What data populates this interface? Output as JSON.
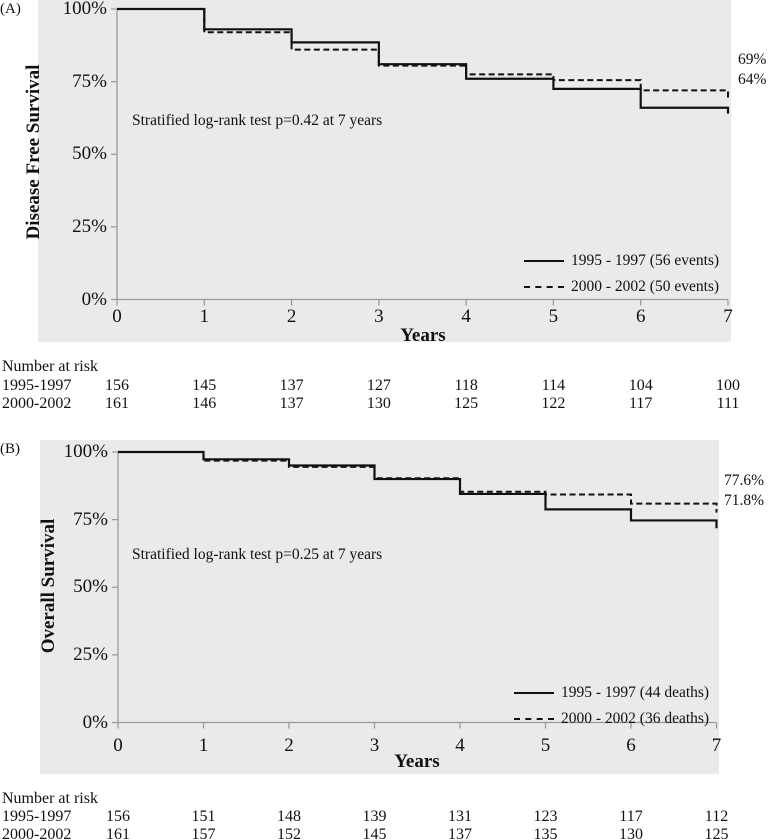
{
  "colors": {
    "plot_background": "#e9ebe8",
    "axis_line": "#9a9c9a",
    "curve_line": "#111111",
    "text": "#111111"
  },
  "chart_data": [
    {
      "type": "line",
      "subtype": "kaplan-meier-step",
      "panel_label": "(A)",
      "ylabel": "Disease Free Survival",
      "xlabel": "Years",
      "ylim": [
        0,
        100
      ],
      "grid": false,
      "legend_position": "lower right",
      "y_tick_labels": [
        "100%",
        "75%",
        "50%",
        "25%",
        "0%"
      ],
      "y_tick_values": [
        100,
        75,
        50,
        25,
        0
      ],
      "x_tick_labels": [
        "0",
        "1",
        "2",
        "3",
        "4",
        "5",
        "6",
        "7"
      ],
      "x_years": [
        0,
        1,
        2,
        3,
        4,
        5,
        6,
        7
      ],
      "annotation": "Stratified log-rank test p=0.42 at 7 years",
      "series": [
        {
          "name": "1995 - 1997 (56 events)",
          "line_style": "solid",
          "step_values_pct": [
            100,
            93,
            88.5,
            81,
            76,
            72.5,
            66,
            64
          ],
          "final_label": "64%"
        },
        {
          "name": "2000 - 2002 (50 events)",
          "line_style": "dashed",
          "step_values_pct": [
            100,
            92,
            86,
            80.5,
            77.5,
            75.5,
            72,
            69
          ],
          "final_label": "69%"
        }
      ],
      "at_risk": {
        "header": "Number at risk",
        "rows": [
          {
            "label": "1995-1997",
            "values": [
              "156",
              "145",
              "137",
              "127",
              "118",
              "114",
              "104",
              "100"
            ]
          },
          {
            "label": "2000-2002",
            "values": [
              "161",
              "146",
              "137",
              "130",
              "125",
              "122",
              "117",
              "111"
            ]
          }
        ]
      }
    },
    {
      "type": "line",
      "subtype": "kaplan-meier-step",
      "panel_label": "(B)",
      "ylabel": "Overall Survival",
      "xlabel": "Years",
      "ylim": [
        0,
        100
      ],
      "grid": false,
      "legend_position": "lower right",
      "y_tick_labels": [
        "100%",
        "75%",
        "50%",
        "25%",
        "0%"
      ],
      "y_tick_values": [
        100,
        75,
        50,
        25,
        0
      ],
      "x_tick_labels": [
        "0",
        "1",
        "2",
        "3",
        "4",
        "5",
        "6",
        "7"
      ],
      "x_years": [
        0,
        1,
        2,
        3,
        4,
        5,
        6,
        7
      ],
      "annotation": "Stratified log-rank test p=0.25 at 7 years",
      "series": [
        {
          "name": "1995 - 1997 (44 deaths)",
          "line_style": "solid",
          "step_values_pct": [
            100,
            97.3,
            95,
            90,
            84.5,
            78.8,
            74.7,
            71.8
          ],
          "final_label": "71.8%"
        },
        {
          "name": "2000 - 2002 (36 deaths)",
          "line_style": "dashed",
          "step_values_pct": [
            100,
            96.8,
            94.5,
            90.3,
            85.3,
            84.3,
            80.9,
            77.6
          ],
          "final_label": "77.6%"
        }
      ],
      "at_risk": {
        "header": "Number at risk",
        "rows": [
          {
            "label": "1995-1997",
            "values": [
              "156",
              "151",
              "148",
              "139",
              "131",
              "123",
              "117",
              "112"
            ]
          },
          {
            "label": "2000-2002",
            "values": [
              "161",
              "157",
              "152",
              "145",
              "137",
              "135",
              "130",
              "125"
            ]
          }
        ]
      }
    }
  ]
}
